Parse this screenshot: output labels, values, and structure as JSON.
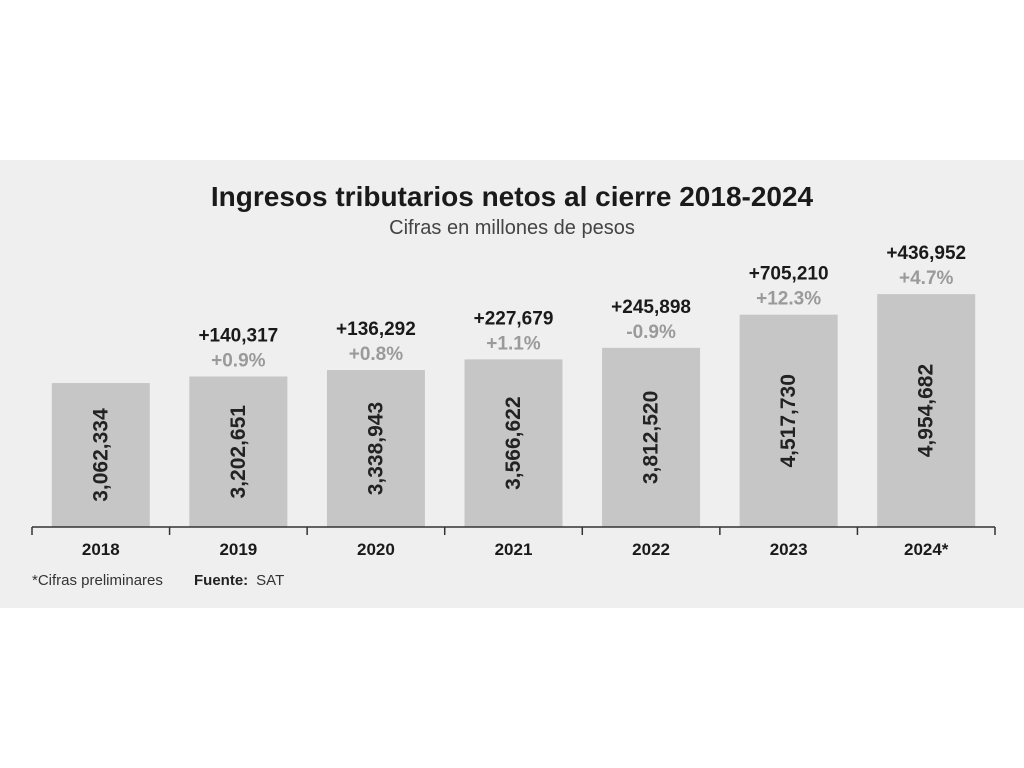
{
  "chart_data": {
    "type": "bar",
    "title": "Ingresos tributarios netos al cierre 2018-2024",
    "subtitle": "Cifras en millones de pesos",
    "categories": [
      "2018",
      "2019",
      "2020",
      "2021",
      "2022",
      "2023",
      "2024*"
    ],
    "values": [
      3062334,
      3202651,
      3338943,
      3566622,
      3812520,
      4517730,
      4954682
    ],
    "value_labels": [
      "3,062,334",
      "3,202,651",
      "3,338,943",
      "3,566,622",
      "3,812,520",
      "4,517,730",
      "4,954,682"
    ],
    "change_abs": [
      "",
      "+140,317",
      "+136,292",
      "+227,679",
      "+245,898",
      "+705,210",
      "+436,952"
    ],
    "change_pct": [
      "",
      "+0.9%",
      "+0.8%",
      "+1.1%",
      "-0.9%",
      "+12.3%",
      "+4.7%"
    ],
    "xlabel": "",
    "ylabel": "",
    "grid": false,
    "legend": "none",
    "colors": {
      "bar": "#c6c6c6",
      "background": "#efefef",
      "axis": "#333333",
      "change_abs": "#1a1a1a",
      "change_pct": "#9a9a9a"
    }
  },
  "footer": {
    "note": "*Cifras preliminares",
    "source_label": "Fuente:",
    "source_value": "SAT"
  }
}
